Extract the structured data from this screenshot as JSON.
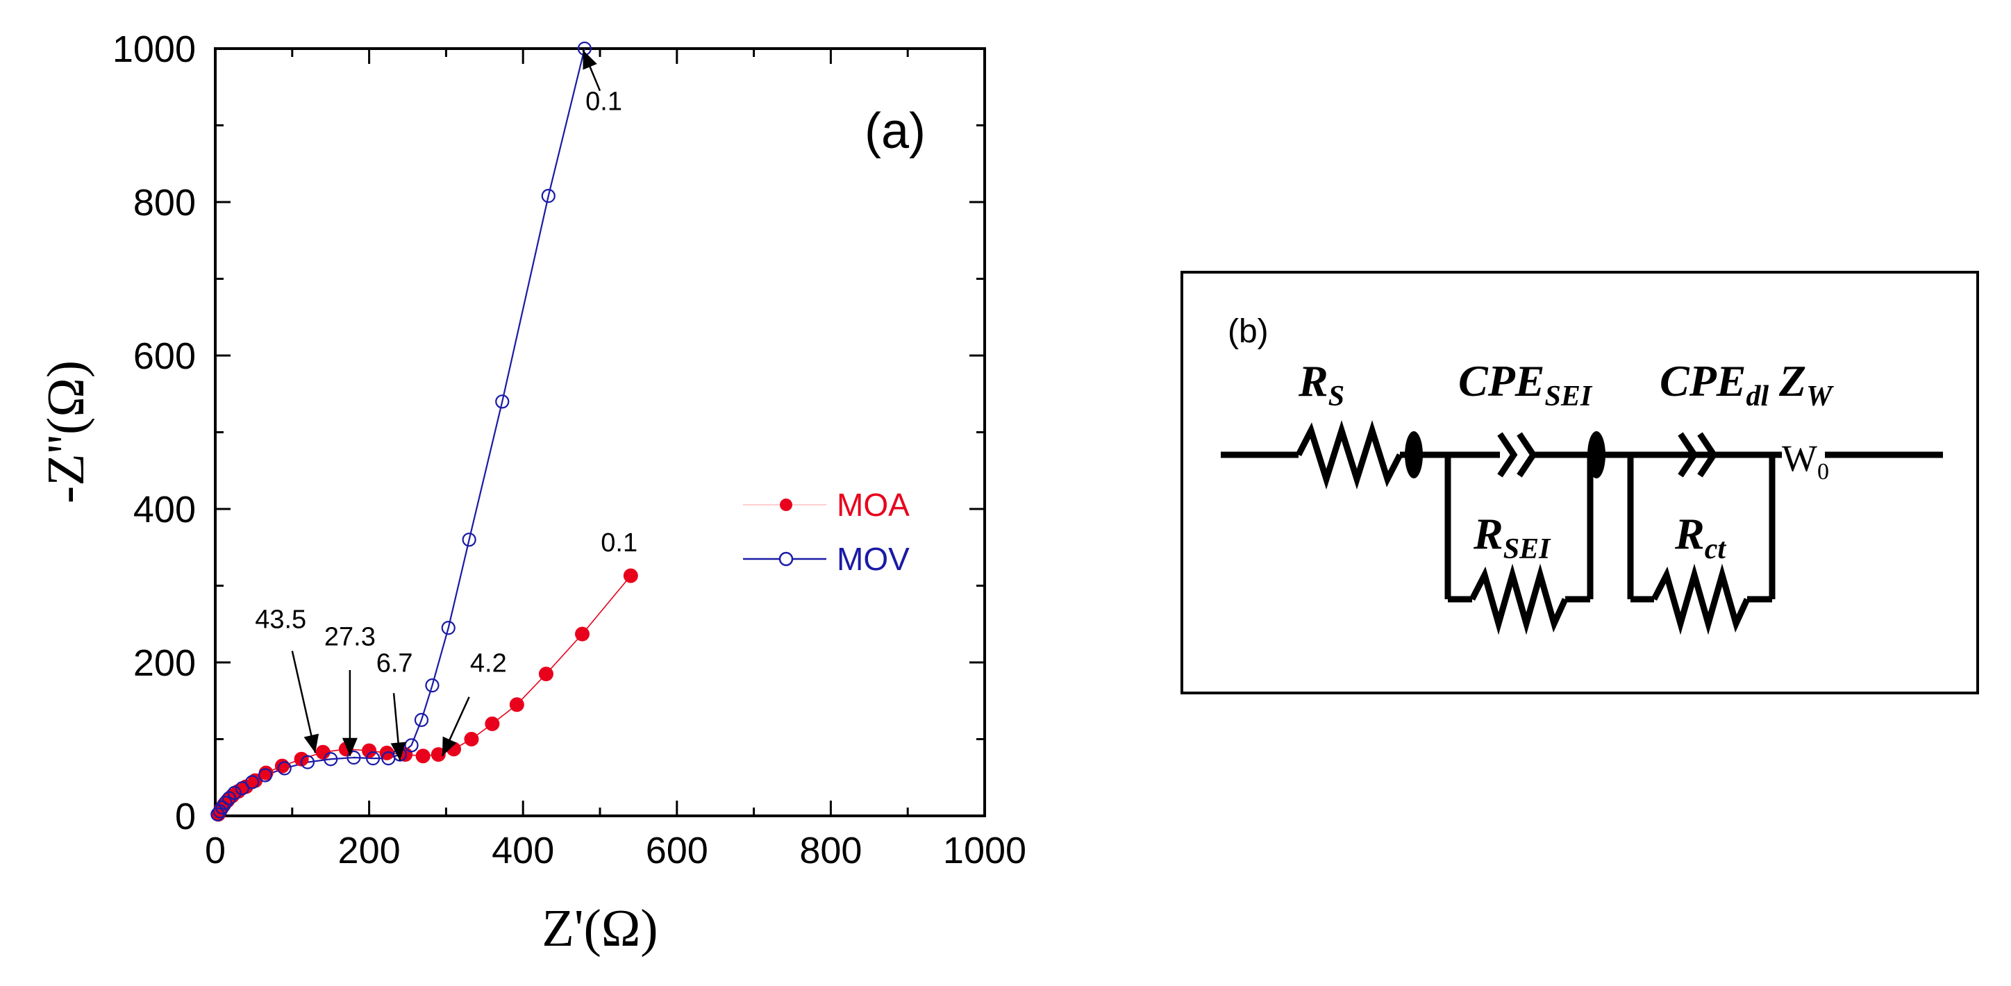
{
  "chart_data": {
    "type": "scatter",
    "panel_label": "(a)",
    "xlabel": "Z'(Ω)",
    "ylabel": "-Z''(Ω)",
    "xlim": [
      0,
      1000
    ],
    "ylim": [
      0,
      1000
    ],
    "xticks": [
      "0",
      "200",
      "400",
      "600",
      "800",
      "1000"
    ],
    "yticks": [
      "0",
      "200",
      "400",
      "600",
      "800",
      "1000"
    ],
    "legend_position": "right-middle",
    "series": [
      {
        "name": "MOA",
        "color": "#e8001c",
        "marker": "filled-circle",
        "x": [
          4,
          7,
          11,
          16,
          22,
          30,
          40,
          52,
          66,
          87,
          112,
          140,
          170,
          200,
          223,
          247,
          270,
          290,
          310,
          333,
          360,
          392,
          430,
          477,
          540
        ],
        "y": [
          2,
          8,
          14,
          20,
          26,
          32,
          38,
          46,
          56,
          65,
          74,
          83,
          87,
          85,
          82,
          80,
          78,
          80,
          87,
          100,
          120,
          145,
          185,
          237,
          313
        ]
      },
      {
        "name": "MOV",
        "color": "#1a1aa6",
        "marker": "open-circle",
        "x": [
          3,
          6,
          9,
          13,
          18,
          25,
          35,
          48,
          65,
          90,
          120,
          150,
          180,
          205,
          225,
          240,
          255,
          268,
          282,
          303,
          330,
          373,
          433,
          480
        ],
        "y": [
          2,
          6,
          11,
          17,
          23,
          30,
          36,
          44,
          53,
          62,
          70,
          74,
          76,
          75,
          75,
          80,
          92,
          125,
          170,
          245,
          360,
          540,
          808,
          1000
        ]
      }
    ],
    "annotations": [
      {
        "text": "0.1",
        "series": "MOV",
        "tip": [
          478,
          998
        ],
        "tail": [
          500,
          945
        ],
        "label_at": [
          505,
          920
        ]
      },
      {
        "text": "0.1",
        "series": "MOA",
        "label_at": [
          525,
          345
        ]
      },
      {
        "text": "43.5",
        "tip": [
          130,
          82
        ],
        "tail": [
          100,
          215
        ],
        "label_at": [
          85,
          245
        ]
      },
      {
        "text": "27.3",
        "tip": [
          175,
          78
        ],
        "tail": [
          175,
          190
        ],
        "label_at": [
          175,
          222
        ]
      },
      {
        "text": "6.7",
        "tip": [
          240,
          72
        ],
        "tail": [
          232,
          160
        ],
        "label_at": [
          233,
          188
        ]
      },
      {
        "text": "4.2",
        "tip": [
          295,
          78
        ],
        "tail": [
          330,
          155
        ],
        "label_at": [
          355,
          188
        ]
      }
    ]
  },
  "circuit": {
    "panel_label": "(b)",
    "elements": [
      {
        "main": "R",
        "sub": "S"
      },
      {
        "main": "CPE",
        "sub": "SEI"
      },
      {
        "main": "R",
        "sub": "SEI"
      },
      {
        "main": "CPE",
        "sub": "dl"
      },
      {
        "main": "R",
        "sub": "ct"
      },
      {
        "main": "Z",
        "sub": "W"
      }
    ],
    "warburg_symbol": {
      "main": "W",
      "sub": "0"
    }
  }
}
